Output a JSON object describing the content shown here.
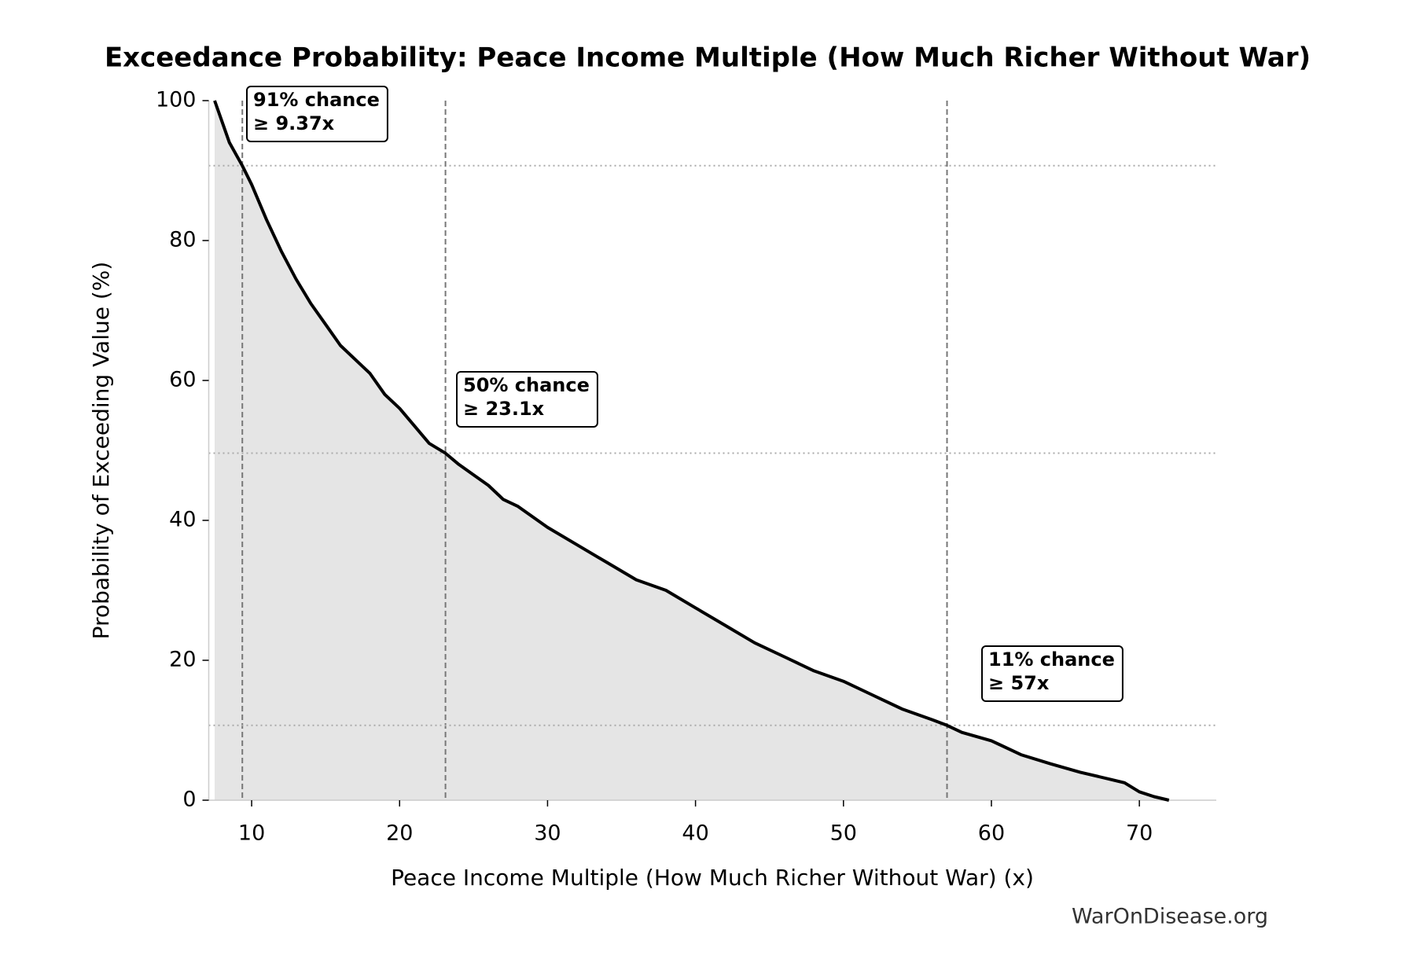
{
  "chart_data": {
    "type": "line",
    "title": "Exceedance Probability: Peace Income Multiple (How Much Richer Without War)",
    "x_label": "Peace Income Multiple (How Much Richer Without War) (x)",
    "y_label": "Probability of Exceeding Value (%)",
    "source": "WarOnDisease.org",
    "x": [
      7.5,
      8,
      8.5,
      9.37,
      10,
      11,
      12,
      13,
      14,
      15,
      16,
      17,
      18,
      19,
      20,
      21,
      22,
      23.1,
      24,
      25,
      26,
      27,
      28,
      30,
      32,
      34,
      36,
      38,
      40,
      42,
      44,
      46,
      48,
      50,
      52,
      54,
      56,
      57,
      58,
      60,
      62,
      64,
      66,
      68,
      69,
      70,
      71,
      72
    ],
    "values": [
      100,
      97,
      94,
      90.7,
      88,
      83,
      78.5,
      74.5,
      71,
      68,
      65,
      63,
      61,
      58,
      56,
      53.5,
      51,
      49.6,
      48,
      46.5,
      45,
      43,
      42,
      39,
      36.5,
      34,
      31.5,
      30,
      27.5,
      25,
      22.5,
      20.5,
      18.5,
      17,
      15,
      13,
      11.5,
      10.7,
      9.7,
      8.5,
      6.5,
      5.2,
      4,
      3,
      2.5,
      1.2,
      0.5,
      0
    ],
    "color": "#000000",
    "fill_color": "#e5e5e5",
    "xlim": [
      7.1,
      75.2
    ],
    "xticks": [
      10,
      20,
      30,
      40,
      50,
      60,
      70
    ],
    "ylim": [
      0,
      100
    ],
    "yticks": [
      0,
      20,
      40,
      60,
      80,
      100
    ],
    "annotations": [
      {
        "x": 9.37,
        "probability": 90.7,
        "text": [
          "91% chance",
          "≥ 9.37x"
        ]
      },
      {
        "x": 23.1,
        "probability": 49.6,
        "text": [
          "50% chance",
          "≥ 23.1x"
        ]
      },
      {
        "x": 57,
        "probability": 10.7,
        "text": [
          "11% chance",
          "≥ 57x"
        ]
      }
    ]
  }
}
